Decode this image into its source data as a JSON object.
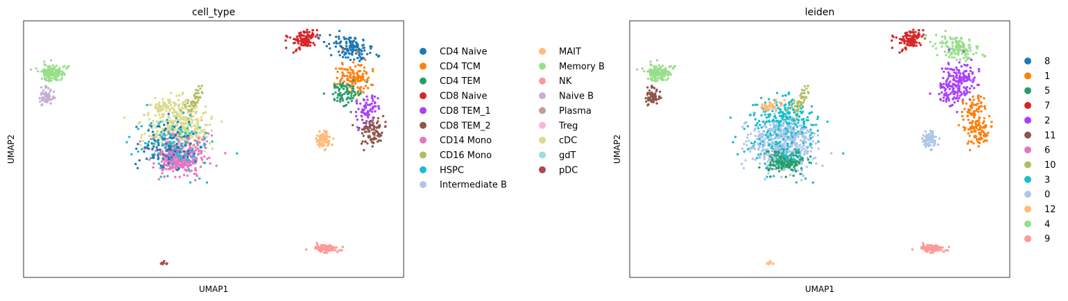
{
  "chart_data": [
    {
      "type": "scatter",
      "title": "cell_type",
      "xlabel": "UMAP1",
      "ylabel": "UMAP2",
      "grid": false,
      "ticks": false,
      "legend": "right, two columns",
      "legend_entries": [
        {
          "name": "CD4 Naive",
          "color": "#1f77b4"
        },
        {
          "name": "CD4 TCM",
          "color": "#ff7f0e"
        },
        {
          "name": "CD4 TEM",
          "color": "#279e68"
        },
        {
          "name": "CD8 Naive",
          "color": "#d62728"
        },
        {
          "name": "CD8 TEM_1",
          "color": "#aa40fc"
        },
        {
          "name": "CD8 TEM_2",
          "color": "#8c564b"
        },
        {
          "name": "CD14 Mono",
          "color": "#e377c2"
        },
        {
          "name": "CD16 Mono",
          "color": "#b5bd61"
        },
        {
          "name": "HSPC",
          "color": "#17becf"
        },
        {
          "name": "Intermediate B",
          "color": "#aec7e8"
        },
        {
          "name": "MAIT",
          "color": "#ffbb78"
        },
        {
          "name": "Memory B",
          "color": "#98df8a"
        },
        {
          "name": "NK",
          "color": "#ff9896"
        },
        {
          "name": "Naive B",
          "color": "#c5b0d5"
        },
        {
          "name": "Plasma",
          "color": "#c49c94"
        },
        {
          "name": "Treg",
          "color": "#f7b6d2"
        },
        {
          "name": "cDC",
          "color": "#dbdb8d"
        },
        {
          "name": "gdT",
          "color": "#9edae5"
        },
        {
          "name": "pDC",
          "color": "#ad494a"
        }
      ]
    },
    {
      "type": "scatter",
      "title": "leiden",
      "xlabel": "UMAP1",
      "ylabel": "UMAP2",
      "grid": false,
      "ticks": false,
      "legend": "right, one column",
      "legend_entries": [
        {
          "name": "8",
          "color": "#1f77b4"
        },
        {
          "name": "1",
          "color": "#ff7f0e"
        },
        {
          "name": "5",
          "color": "#279e68"
        },
        {
          "name": "7",
          "color": "#d62728"
        },
        {
          "name": "2",
          "color": "#aa40fc"
        },
        {
          "name": "11",
          "color": "#8c564b"
        },
        {
          "name": "6",
          "color": "#e377c2"
        },
        {
          "name": "10",
          "color": "#b5bd61"
        },
        {
          "name": "3",
          "color": "#17becf"
        },
        {
          "name": "0",
          "color": "#aec7e8"
        },
        {
          "name": "12",
          "color": "#ffbb78"
        },
        {
          "name": "4",
          "color": "#98df8a"
        },
        {
          "name": "9",
          "color": "#ff9896"
        }
      ]
    }
  ]
}
